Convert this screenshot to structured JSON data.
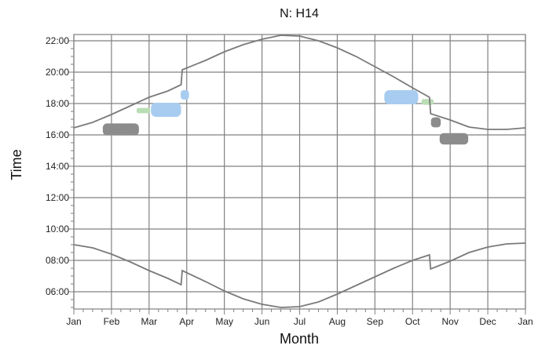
{
  "chart_data": {
    "type": "line",
    "title": "N: H14",
    "xlabel": "Month",
    "ylabel": "Time",
    "x_tick_labels": [
      "Jan",
      "Feb",
      "Mar",
      "Apr",
      "May",
      "Jun",
      "Jul",
      "Aug",
      "Sep",
      "Oct",
      "Nov",
      "Dec",
      "Jan"
    ],
    "y_tick_labels": [
      "06:00",
      "08:00",
      "10:00",
      "12:00",
      "14:00",
      "16:00",
      "18:00",
      "20:00",
      "22:00"
    ],
    "xlim": [
      0,
      12
    ],
    "ylim": [
      4.9,
      22.4
    ],
    "grid": true,
    "colors": {
      "curve": "#7a7a7a",
      "grid": "#808080",
      "dark_patch": "#8c8c8c",
      "blue_patch": "#a8ccf0",
      "green_patch": "#b9ddb4"
    },
    "series": [
      {
        "points": [
          [
            0,
            16.45
          ],
          [
            0.5,
            16.8
          ],
          [
            1,
            17.3
          ],
          [
            1.5,
            17.85
          ],
          [
            2,
            18.4
          ],
          [
            2.5,
            18.8
          ],
          [
            2.85,
            19.2
          ],
          [
            2.88,
            20.15
          ],
          [
            3.5,
            20.75
          ],
          [
            4,
            21.3
          ],
          [
            4.5,
            21.75
          ],
          [
            5,
            22.1
          ],
          [
            5.5,
            22.35
          ],
          [
            6,
            22.3
          ],
          [
            6.5,
            22.0
          ],
          [
            7,
            21.55
          ],
          [
            7.5,
            21.0
          ],
          [
            8,
            20.35
          ],
          [
            8.5,
            19.7
          ],
          [
            9,
            19.0
          ],
          [
            9.45,
            18.4
          ],
          [
            9.48,
            17.35
          ],
          [
            10,
            16.95
          ],
          [
            10.5,
            16.5
          ],
          [
            11,
            16.35
          ],
          [
            11.5,
            16.35
          ],
          [
            12,
            16.45
          ]
        ]
      },
      {
        "points": [
          [
            0,
            9.0
          ],
          [
            0.5,
            8.8
          ],
          [
            1,
            8.4
          ],
          [
            1.5,
            7.9
          ],
          [
            2,
            7.35
          ],
          [
            2.5,
            6.85
          ],
          [
            2.85,
            6.45
          ],
          [
            2.88,
            7.35
          ],
          [
            3.5,
            6.65
          ],
          [
            4,
            6.05
          ],
          [
            4.5,
            5.55
          ],
          [
            5,
            5.2
          ],
          [
            5.5,
            5.0
          ],
          [
            6,
            5.05
          ],
          [
            6.5,
            5.35
          ],
          [
            7,
            5.85
          ],
          [
            7.5,
            6.4
          ],
          [
            8,
            6.95
          ],
          [
            8.5,
            7.5
          ],
          [
            9,
            8.0
          ],
          [
            9.45,
            8.35
          ],
          [
            9.48,
            7.45
          ],
          [
            10,
            7.95
          ],
          [
            10.5,
            8.5
          ],
          [
            11,
            8.85
          ],
          [
            11.5,
            9.05
          ],
          [
            12,
            9.1
          ]
        ]
      }
    ],
    "patches": [
      {
        "color": "dark",
        "cx": 1.25,
        "cy": 16.35,
        "rx": 0.48,
        "ry": 0.38
      },
      {
        "color": "green",
        "cx": 1.85,
        "cy": 17.55,
        "rx": 0.18,
        "ry": 0.17
      },
      {
        "color": "blue",
        "cx": 2.45,
        "cy": 17.6,
        "rx": 0.4,
        "ry": 0.45
      },
      {
        "color": "blue",
        "cx": 2.95,
        "cy": 18.55,
        "rx": 0.11,
        "ry": 0.3
      },
      {
        "color": "blue",
        "cx": 8.7,
        "cy": 18.4,
        "rx": 0.45,
        "ry": 0.45
      },
      {
        "color": "green",
        "cx": 9.4,
        "cy": 18.1,
        "rx": 0.16,
        "ry": 0.18
      },
      {
        "color": "dark",
        "cx": 9.62,
        "cy": 16.8,
        "rx": 0.13,
        "ry": 0.32
      },
      {
        "color": "dark",
        "cx": 10.1,
        "cy": 15.75,
        "rx": 0.38,
        "ry": 0.36
      }
    ]
  }
}
